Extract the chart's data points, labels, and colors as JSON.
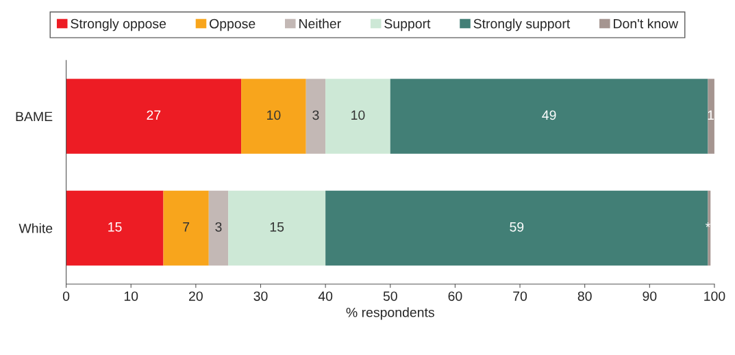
{
  "chart_data": {
    "type": "bar",
    "orientation": "horizontal",
    "stacked": true,
    "xlabel": "% respondents",
    "categories": [
      "BAME",
      "White"
    ],
    "series": [
      {
        "name": "Strongly oppose",
        "color": "#ed1c24",
        "values": [
          27,
          15
        ],
        "value_labels": [
          "27",
          "15"
        ]
      },
      {
        "name": "Oppose",
        "color": "#f8a51c",
        "values": [
          10,
          7
        ],
        "value_labels": [
          "10",
          "7"
        ]
      },
      {
        "name": "Neither",
        "color": "#c3b8b5",
        "values": [
          3,
          3
        ],
        "value_labels": [
          "3",
          "3"
        ]
      },
      {
        "name": "Support",
        "color": "#cde8d6",
        "values": [
          10,
          15
        ],
        "value_labels": [
          "10",
          "15"
        ]
      },
      {
        "name": "Strongly support",
        "color": "#427f76",
        "values": [
          49,
          59
        ],
        "value_labels": [
          "49",
          "59"
        ]
      },
      {
        "name": "Don't know",
        "color": "#a59590",
        "values": [
          1,
          0.4
        ],
        "value_labels": [
          "1",
          "*"
        ]
      }
    ],
    "xlim": [
      0,
      100
    ],
    "xticks": [
      0,
      10,
      20,
      30,
      40,
      50,
      60,
      70,
      80,
      90,
      100
    ],
    "grid": false,
    "legend": "top"
  }
}
